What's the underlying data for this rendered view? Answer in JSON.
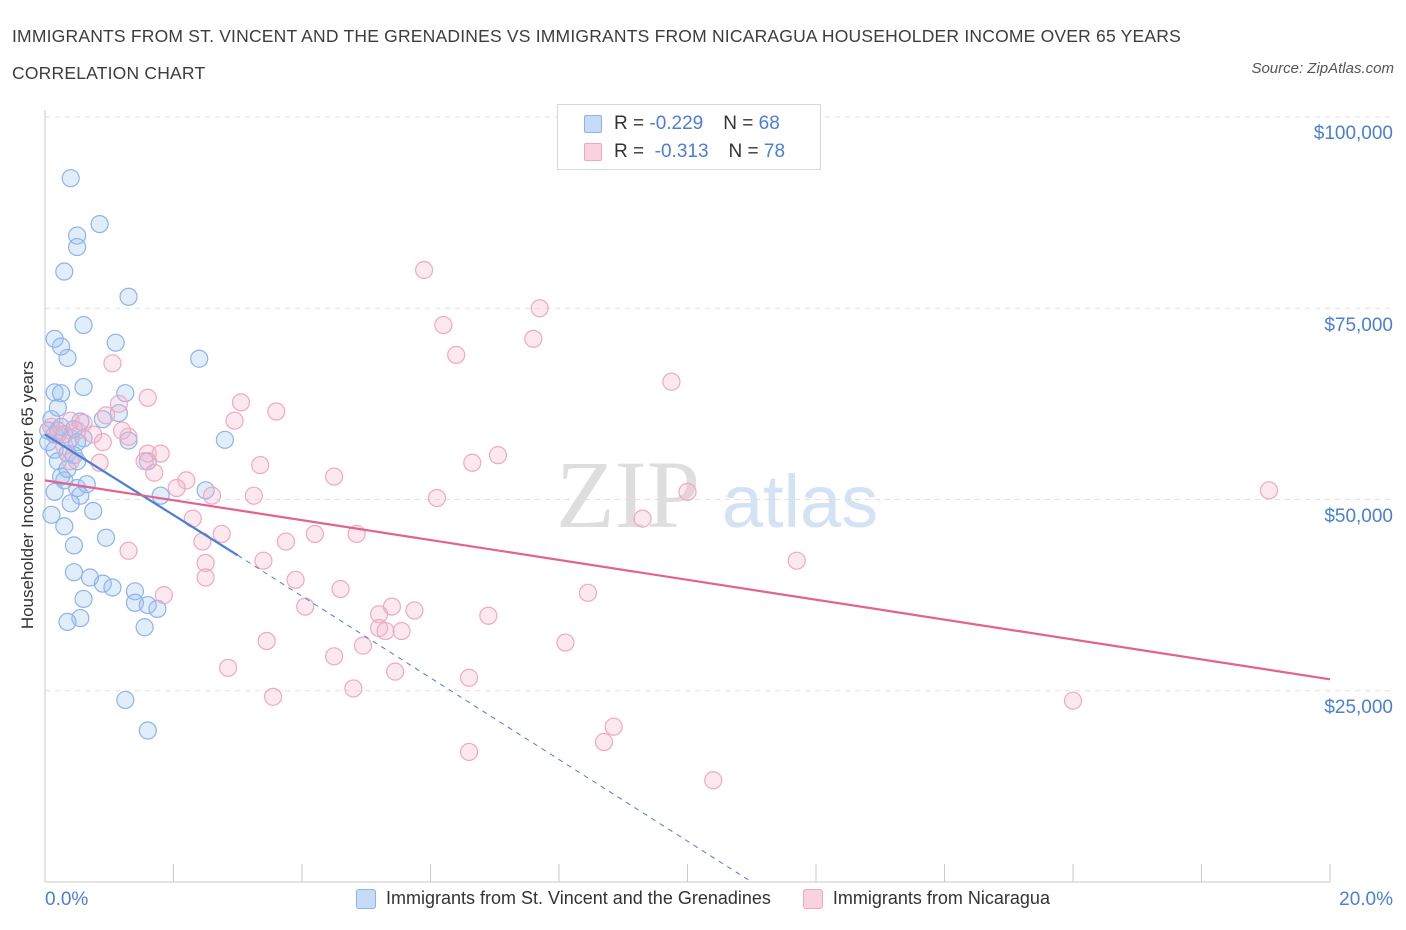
{
  "title": "IMMIGRANTS FROM ST. VINCENT AND THE GRENADINES VS IMMIGRANTS FROM NICARAGUA HOUSEHOLDER INCOME OVER 65 YEARS CORRELATION CHART",
  "source": "Source: ZipAtlas.com",
  "watermark": {
    "zip": "ZIP",
    "atlas": "atlas"
  },
  "stats": [
    {
      "r_label": "R = ",
      "r_value": "-0.229",
      "n_label": "N = ",
      "n_value": "68",
      "color": "#8ab4ee",
      "fill": "#c5dbf7"
    },
    {
      "r_label": "R = ",
      "r_value": " -0.313",
      "n_label": "N = ",
      "n_value": "78",
      "color": "#f0a8c0",
      "fill": "#fad2df"
    }
  ],
  "legend": [
    {
      "label": "Immigrants from St. Vincent and the Grenadines",
      "color": "#8ab4ee",
      "fill": "#c5dbf7"
    },
    {
      "label": "Immigrants from Nicaragua",
      "color": "#f0a8c0",
      "fill": "#fad2df"
    }
  ],
  "chart_data": {
    "type": "scatter",
    "title": "IMMIGRANTS FROM ST. VINCENT AND THE GRENADINES VS IMMIGRANTS FROM NICARAGUA HOUSEHOLDER INCOME OVER 65 YEARS CORRELATION CHART",
    "xlabel": "",
    "ylabel": "Householder Income Over 65 years",
    "xlim": [
      0,
      20
    ],
    "ylim": [
      0,
      100000
    ],
    "x_tick_labels": [
      "0.0%",
      "20.0%"
    ],
    "y_ticks": [
      25000,
      50000,
      75000,
      100000
    ],
    "y_tick_labels": [
      "$25,000",
      "$50,000",
      "$75,000",
      "$100,000"
    ],
    "grid": true,
    "series": [
      {
        "name": "Immigrants from St. Vincent and the Grenadines",
        "color": "#4a7fd4",
        "trend": {
          "x0": 0.0,
          "y0": 58500,
          "x1": 3.0,
          "y1": 42700,
          "dashed_to_x": 11.0,
          "dashed_to_y": 0
        },
        "points": [
          [
            0.4,
            92000
          ],
          [
            0.85,
            86000
          ],
          [
            0.5,
            84500
          ],
          [
            0.5,
            83000
          ],
          [
            0.3,
            79800
          ],
          [
            1.3,
            76500
          ],
          [
            0.6,
            72800
          ],
          [
            0.15,
            71000
          ],
          [
            0.35,
            68500
          ],
          [
            0.25,
            70000
          ],
          [
            1.1,
            70500
          ],
          [
            2.4,
            68400
          ],
          [
            0.6,
            64700
          ],
          [
            0.15,
            64000
          ],
          [
            0.25,
            63900
          ],
          [
            1.25,
            63900
          ],
          [
            1.15,
            61300
          ],
          [
            0.9,
            60500
          ],
          [
            0.1,
            60500
          ],
          [
            0.2,
            59000
          ],
          [
            0.3,
            58500
          ],
          [
            0.4,
            58000
          ],
          [
            0.05,
            57500
          ],
          [
            0.6,
            58000
          ],
          [
            0.5,
            57500
          ],
          [
            1.3,
            57700
          ],
          [
            2.8,
            57800
          ],
          [
            0.15,
            56500
          ],
          [
            0.35,
            56000
          ],
          [
            0.45,
            55800
          ],
          [
            0.2,
            55000
          ],
          [
            0.5,
            55000
          ],
          [
            1.6,
            55000
          ],
          [
            0.25,
            53000
          ],
          [
            0.3,
            52500
          ],
          [
            0.5,
            51500
          ],
          [
            0.15,
            51000
          ],
          [
            0.55,
            50500
          ],
          [
            2.5,
            51200
          ],
          [
            1.8,
            50500
          ],
          [
            0.75,
            48500
          ],
          [
            0.1,
            48000
          ],
          [
            0.3,
            46500
          ],
          [
            0.45,
            44000
          ],
          [
            0.95,
            45000
          ],
          [
            0.45,
            40500
          ],
          [
            0.7,
            39800
          ],
          [
            0.9,
            39000
          ],
          [
            1.05,
            38500
          ],
          [
            1.4,
            38000
          ],
          [
            0.6,
            37000
          ],
          [
            1.4,
            36500
          ],
          [
            1.6,
            36200
          ],
          [
            1.75,
            35700
          ],
          [
            0.55,
            34500
          ],
          [
            0.35,
            34000
          ],
          [
            1.55,
            33300
          ],
          [
            1.25,
            23800
          ],
          [
            1.6,
            19800
          ],
          [
            0.15,
            58500
          ],
          [
            0.25,
            59500
          ],
          [
            0.05,
            59000
          ],
          [
            0.45,
            59200
          ],
          [
            0.2,
            62000
          ],
          [
            0.55,
            60200
          ],
          [
            0.35,
            54000
          ],
          [
            0.65,
            52000
          ],
          [
            0.4,
            49500
          ]
        ]
      },
      {
        "name": "Immigrants from Nicaragua",
        "color": "#e2638f",
        "trend": {
          "x0": 0.0,
          "y0": 52500,
          "x1": 20.0,
          "y1": 26500
        },
        "points": [
          [
            5.9,
            80000
          ],
          [
            7.7,
            75000
          ],
          [
            6.2,
            72800
          ],
          [
            7.6,
            71000
          ],
          [
            6.4,
            68900
          ],
          [
            1.05,
            67800
          ],
          [
            9.75,
            65400
          ],
          [
            1.6,
            63300
          ],
          [
            3.05,
            62700
          ],
          [
            1.15,
            62500
          ],
          [
            3.6,
            61500
          ],
          [
            2.95,
            60300
          ],
          [
            0.4,
            60300
          ],
          [
            0.1,
            59500
          ],
          [
            0.5,
            59000
          ],
          [
            0.75,
            58500
          ],
          [
            1.3,
            58200
          ],
          [
            0.9,
            57500
          ],
          [
            1.6,
            56000
          ],
          [
            1.8,
            56000
          ],
          [
            7.05,
            55800
          ],
          [
            1.55,
            55000
          ],
          [
            0.85,
            54800
          ],
          [
            3.35,
            54500
          ],
          [
            6.65,
            54800
          ],
          [
            1.7,
            53500
          ],
          [
            4.5,
            53000
          ],
          [
            2.2,
            52500
          ],
          [
            2.05,
            51500
          ],
          [
            3.25,
            50500
          ],
          [
            6.1,
            50200
          ],
          [
            10.0,
            51000
          ],
          [
            19.05,
            51200
          ],
          [
            2.3,
            47500
          ],
          [
            9.3,
            47500
          ],
          [
            2.45,
            44500
          ],
          [
            4.2,
            45500
          ],
          [
            3.75,
            44500
          ],
          [
            4.85,
            45500
          ],
          [
            1.3,
            43300
          ],
          [
            2.75,
            45500
          ],
          [
            11.7,
            42000
          ],
          [
            2.5,
            41700
          ],
          [
            3.4,
            42000
          ],
          [
            2.5,
            39800
          ],
          [
            3.9,
            39500
          ],
          [
            4.6,
            38300
          ],
          [
            8.45,
            37800
          ],
          [
            1.85,
            37500
          ],
          [
            4.05,
            36000
          ],
          [
            5.4,
            36000
          ],
          [
            5.2,
            35000
          ],
          [
            5.75,
            35500
          ],
          [
            6.9,
            34800
          ],
          [
            5.55,
            32800
          ],
          [
            5.2,
            33200
          ],
          [
            5.3,
            32800
          ],
          [
            3.45,
            31500
          ],
          [
            8.1,
            31300
          ],
          [
            4.95,
            30900
          ],
          [
            4.5,
            29500
          ],
          [
            5.45,
            27500
          ],
          [
            2.85,
            28000
          ],
          [
            6.6,
            26700
          ],
          [
            4.8,
            25300
          ],
          [
            3.55,
            24200
          ],
          [
            16.0,
            23700
          ],
          [
            8.85,
            20300
          ],
          [
            8.7,
            18300
          ],
          [
            6.6,
            17000
          ],
          [
            10.4,
            13300
          ],
          [
            0.3,
            57000
          ],
          [
            0.6,
            60000
          ],
          [
            0.2,
            58500
          ],
          [
            0.95,
            61000
          ],
          [
            0.4,
            55000
          ],
          [
            1.2,
            59000
          ],
          [
            2.6,
            50500
          ]
        ]
      }
    ]
  }
}
